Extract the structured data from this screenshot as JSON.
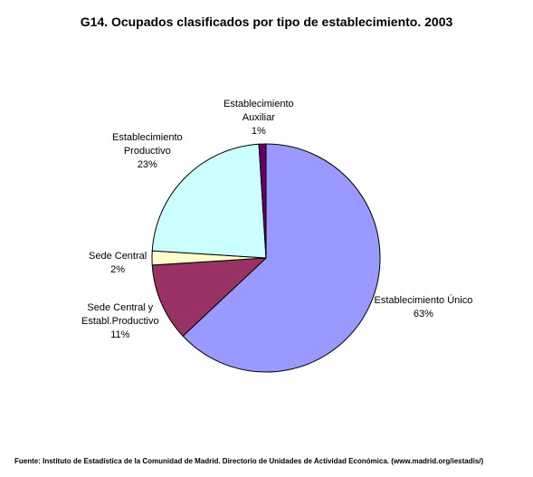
{
  "chart_data": {
    "type": "pie",
    "title": "G14. Ocupados clasificados por tipo de establecimiento. 2003",
    "slices": [
      {
        "label_lines": [
          "Establecimiento Único"
        ],
        "value": 63,
        "value_label": "63%",
        "color": "#9999ff"
      },
      {
        "label_lines": [
          "Sede Central y",
          "Establ.Productivo"
        ],
        "value": 11,
        "value_label": "11%",
        "color": "#993366"
      },
      {
        "label_lines": [
          "Sede Central"
        ],
        "value": 2,
        "value_label": "2%",
        "color": "#ffffcc"
      },
      {
        "label_lines": [
          "Establecimiento",
          "Productivo"
        ],
        "value": 23,
        "value_label": "23%",
        "color": "#ccffff"
      },
      {
        "label_lines": [
          "Establecimiento",
          "Auxiliar"
        ],
        "value": 1,
        "value_label": "1%",
        "color": "#660066"
      }
    ],
    "start": "12 o'clock",
    "direction": "clockwise"
  },
  "source": "Fuente: Instituto de Estadística de la Comunidad de Madrid. Directorio de Unidades de Actividad Económica. (www.madrid.org/iestadis/)"
}
